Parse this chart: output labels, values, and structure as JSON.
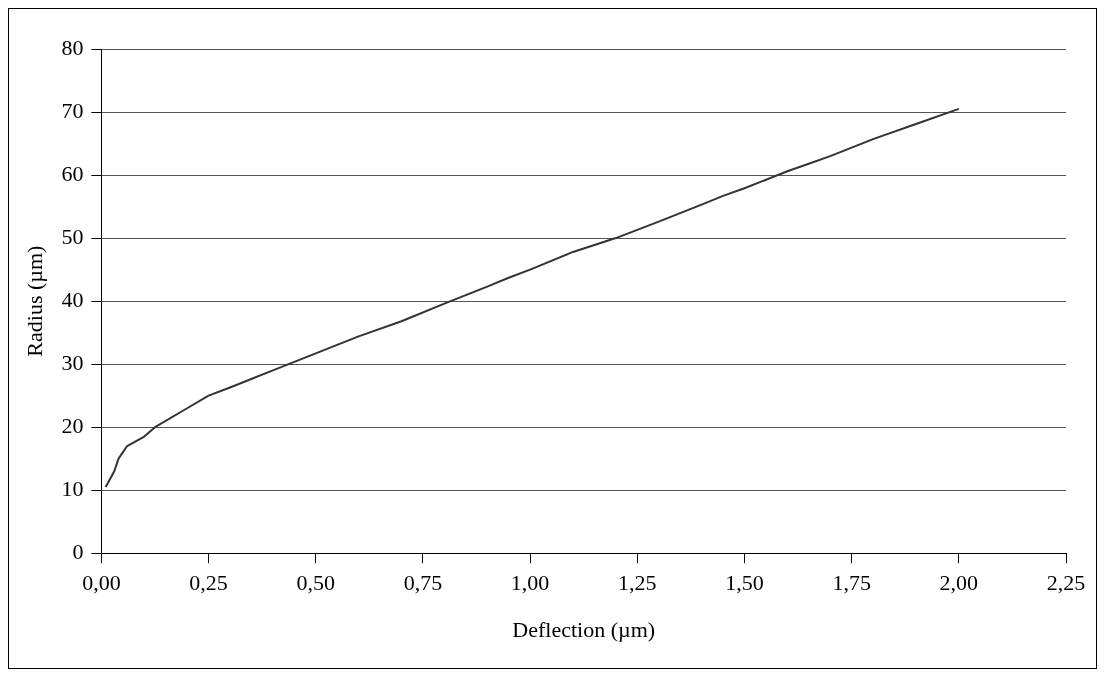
{
  "chart_data": {
    "type": "line",
    "xlabel": "Deflection (µm)",
    "ylabel": "Radius (µm)",
    "x": [
      0.01,
      0.03,
      0.04,
      0.06,
      0.1,
      0.125,
      0.2,
      0.25,
      0.3,
      0.4,
      0.5,
      0.6,
      0.7,
      0.8,
      0.9,
      0.95,
      1.0,
      1.1,
      1.2,
      1.3,
      1.4,
      1.45,
      1.5,
      1.6,
      1.65,
      1.7,
      1.8,
      1.9,
      2.0
    ],
    "series": [
      {
        "color": "#333333",
        "values": [
          10.5,
          13,
          15,
          17,
          18.5,
          20,
          23,
          25,
          26.3,
          29,
          31.7,
          34.4,
          36.8,
          39.6,
          42.3,
          43.7,
          45,
          47.8,
          50,
          52.6,
          55.3,
          56.7,
          57.9,
          60.6,
          61.8,
          63,
          65.7,
          68.1,
          70.5
        ]
      }
    ],
    "xlim": [
      0,
      2.25
    ],
    "xticks": [
      {
        "value": 0,
        "label": "0,00"
      },
      {
        "value": 0.25,
        "label": "0,25"
      },
      {
        "value": 0.5,
        "label": "0,50"
      },
      {
        "value": 0.75,
        "label": "0,75"
      },
      {
        "value": 1,
        "label": "1,00"
      },
      {
        "value": 1.25,
        "label": "1,25"
      },
      {
        "value": 1.5,
        "label": "1,50"
      },
      {
        "value": 1.75,
        "label": "1,75"
      },
      {
        "value": 2,
        "label": "2,00"
      },
      {
        "value": 2.25,
        "label": "2,25"
      }
    ],
    "ylim": [
      0,
      80
    ],
    "yticks": [
      0,
      10,
      20,
      30,
      40,
      50,
      60,
      70,
      80
    ],
    "grid": "y",
    "legend": false,
    "marker": "none",
    "line_style": "solid"
  }
}
